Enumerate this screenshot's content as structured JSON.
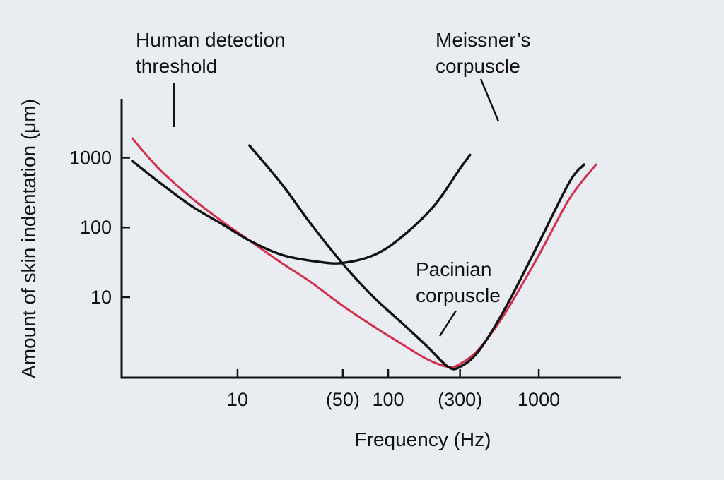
{
  "chart_data": {
    "type": "line",
    "title": "",
    "xlabel": "Frequency (Hz)",
    "ylabel": "Amount of skin indentation (μm)",
    "xscale": "log",
    "yscale": "log",
    "xlim": [
      1.7,
      3500
    ],
    "ylim": [
      0.7,
      7000
    ],
    "grid": false,
    "x_ticks": [
      {
        "value": 10,
        "label": "10"
      },
      {
        "value": 50,
        "label": "(50)"
      },
      {
        "value": 100,
        "label": "100"
      },
      {
        "value": 300,
        "label": "(300)"
      },
      {
        "value": 1000,
        "label": "1000"
      }
    ],
    "y_ticks": [
      {
        "value": 10,
        "label": "10"
      },
      {
        "value": 100,
        "label": "100"
      },
      {
        "value": 1000,
        "label": "1000"
      }
    ],
    "series": [
      {
        "name": "Human detection threshold",
        "color": "#d42e4e",
        "x": [
          2,
          3,
          5,
          8,
          12,
          20,
          30,
          50,
          80,
          120,
          180,
          250,
          300,
          400,
          600,
          1000,
          1600,
          2400
        ],
        "y": [
          1900,
          700,
          260,
          120,
          65,
          30,
          17,
          7.5,
          3.8,
          2.2,
          1.3,
          1.0,
          1.1,
          1.8,
          6,
          40,
          260,
          800
        ]
      },
      {
        "name": "Meissner’s corpuscle",
        "color": "#111111",
        "x": [
          2,
          3,
          5,
          8,
          12,
          20,
          35,
          50,
          80,
          120,
          200,
          300,
          350
        ],
        "y": [
          900,
          450,
          200,
          110,
          65,
          40,
          32,
          31,
          40,
          70,
          200,
          700,
          1100
        ]
      },
      {
        "name": "Pacinian corpuscle",
        "color": "#111111",
        "x": [
          12,
          20,
          30,
          50,
          80,
          120,
          180,
          250,
          300,
          400,
          600,
          1000,
          1600,
          2000
        ],
        "y": [
          1500,
          400,
          120,
          30,
          10,
          4.5,
          2.0,
          1.0,
          1.0,
          1.7,
          7,
          60,
          450,
          800
        ]
      }
    ],
    "annotations": [
      {
        "lines": [
          "Human detection",
          "threshold"
        ]
      },
      {
        "lines": [
          "Meissner’s",
          "corpuscle"
        ]
      },
      {
        "lines": [
          "Pacinian",
          "corpuscle"
        ]
      }
    ]
  }
}
